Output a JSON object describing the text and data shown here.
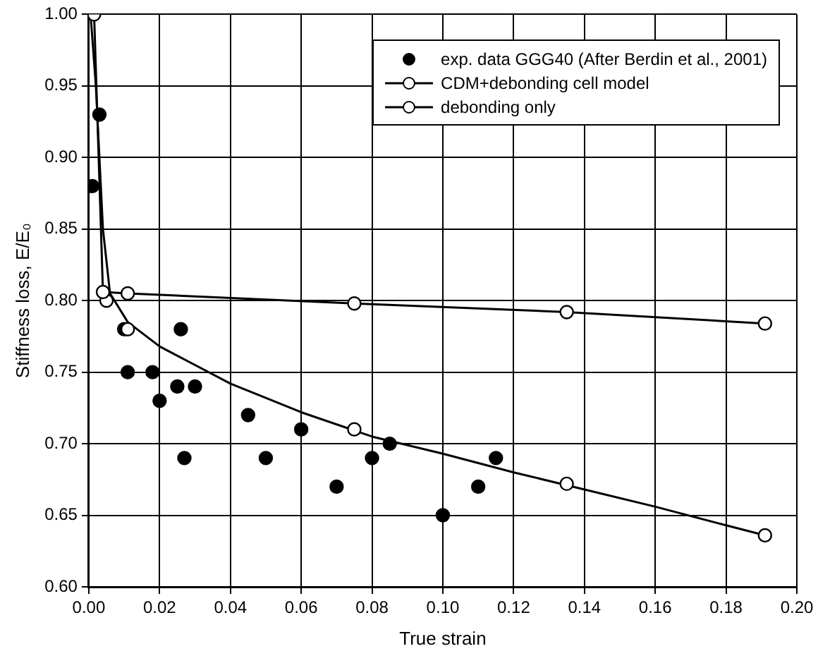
{
  "chart_data": {
    "type": "scatter",
    "xlabel": "True strain",
    "ylabel": "Stiffness loss, E/E₀",
    "xlim": [
      0,
      0.2
    ],
    "xticks": [
      {
        "value": 0,
        "label": "0.00"
      },
      {
        "value": 0.02,
        "label": "0.02"
      },
      {
        "value": 0.04,
        "label": "0.04"
      },
      {
        "value": 0.06,
        "label": "0.06"
      },
      {
        "value": 0.08,
        "label": "0.08"
      },
      {
        "value": 0.1,
        "label": "0.10"
      },
      {
        "value": 0.12,
        "label": "0.12"
      },
      {
        "value": 0.14,
        "label": "0.14"
      },
      {
        "value": 0.16,
        "label": "0.16"
      },
      {
        "value": 0.18,
        "label": "0.18"
      },
      {
        "value": 0.2,
        "label": "0.20"
      }
    ],
    "ylim": [
      0.6,
      1.0
    ],
    "yticks": [
      {
        "value": 0.6,
        "label": "0.60"
      },
      {
        "value": 0.65,
        "label": "0.65"
      },
      {
        "value": 0.7,
        "label": "0.70"
      },
      {
        "value": 0.75,
        "label": "0.75"
      },
      {
        "value": 0.8,
        "label": "0.80"
      },
      {
        "value": 0.85,
        "label": "0.85"
      },
      {
        "value": 0.9,
        "label": "0.90"
      },
      {
        "value": 0.95,
        "label": "0.95"
      },
      {
        "value": 1.0,
        "label": "1.00"
      }
    ],
    "grid": true,
    "legend": "top right",
    "series": [
      {
        "name": "exp. data GGG40 (After Berdin et al., 2001)",
        "marker": "circle",
        "color": "#000000",
        "x": [
          0.001,
          0.003,
          0.01,
          0.011,
          0.018,
          0.02,
          0.025,
          0.026,
          0.027,
          0.03,
          0.045,
          0.05,
          0.06,
          0.07,
          0.08,
          0.085,
          0.1,
          0.11,
          0.115
        ],
        "values": [
          0.88,
          0.93,
          0.78,
          0.75,
          0.75,
          0.73,
          0.74,
          0.78,
          0.69,
          0.74,
          0.72,
          0.69,
          0.71,
          0.67,
          0.69,
          0.7,
          0.65,
          0.67,
          0.69
        ]
      },
      {
        "name": "CDM+debonding cell model",
        "type": "line",
        "marker": "none",
        "color": "#000000",
        "x": [
          0.0005,
          0.002,
          0.003,
          0.004,
          0.006,
          0.011,
          0.02,
          0.03,
          0.04,
          0.06,
          0.08,
          0.1,
          0.12,
          0.14,
          0.16,
          0.18,
          0.191
        ],
        "values": [
          1.0,
          0.95,
          0.9,
          0.85,
          0.805,
          0.785,
          0.768,
          0.755,
          0.742,
          0.722,
          0.705,
          0.693,
          0.68,
          0.668,
          0.656,
          0.643,
          0.636
        ]
      },
      {
        "marker": "circle",
        "color": "#ffffff",
        "x": [
          0.005,
          0.011,
          0.075,
          0.135,
          0.191
        ],
        "values": [
          0.8,
          0.78,
          0.71,
          0.672,
          0.636
        ]
      },
      {
        "name": "debonding only",
        "type": "line",
        "marker": "circle",
        "color": "#000000",
        "x": [
          0.0015,
          0.004,
          0.011,
          0.075,
          0.135,
          0.191
        ],
        "values": [
          1.0,
          0.806,
          0.805,
          0.798,
          0.792,
          0.784
        ]
      }
    ]
  }
}
